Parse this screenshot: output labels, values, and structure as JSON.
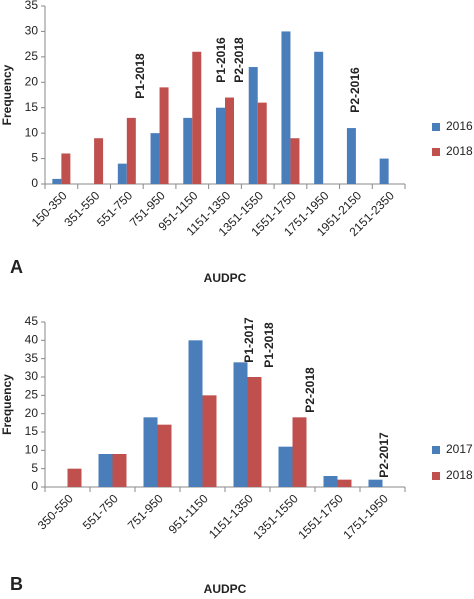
{
  "chart_data": [
    {
      "type": "bar",
      "panel": "A",
      "x_label": "AUDPC",
      "y_label": "Frequency",
      "categories": [
        "150-350",
        "351-550",
        "551-750",
        "751-950",
        "951-1150",
        "1151-1350",
        "1351-1550",
        "1551-1750",
        "1751-1950",
        "1951-2150",
        "2151-2350"
      ],
      "series": [
        {
          "name": "2016",
          "color": "#4a7ebb",
          "values": [
            1,
            0,
            4,
            10,
            13,
            15,
            23,
            30,
            26,
            11,
            5
          ]
        },
        {
          "name": "2018",
          "color": "#c0504d",
          "values": [
            6,
            9,
            13,
            19,
            26,
            17,
            16,
            9,
            0,
            0,
            0
          ]
        }
      ],
      "ylim": [
        0,
        35
      ],
      "yticks": [
        0,
        5,
        10,
        15,
        20,
        25,
        30,
        35
      ],
      "annotations": [
        "P1-2018",
        "P1-2016",
        "P2-2018",
        "P2-2016"
      ]
    },
    {
      "type": "bar",
      "panel": "B",
      "x_label": "AUDPC",
      "y_label": "Frequency",
      "categories": [
        "350-550",
        "551-750",
        "751-950",
        "951-1150",
        "1151-1350",
        "1351-1550",
        "1551-1750",
        "1751-1950"
      ],
      "series": [
        {
          "name": "2017",
          "color": "#4a7ebb",
          "values": [
            0,
            9,
            19,
            40,
            34,
            11,
            3,
            2
          ]
        },
        {
          "name": "2018",
          "color": "#c0504d",
          "values": [
            5,
            9,
            17,
            25,
            30,
            19,
            2,
            0
          ]
        }
      ],
      "ylim": [
        0,
        45
      ],
      "yticks": [
        0,
        5,
        10,
        15,
        20,
        25,
        30,
        35,
        40,
        45
      ],
      "annotations": [
        "P1-2017",
        "P1-2018",
        "P2-2018",
        "P2-2017"
      ]
    }
  ]
}
